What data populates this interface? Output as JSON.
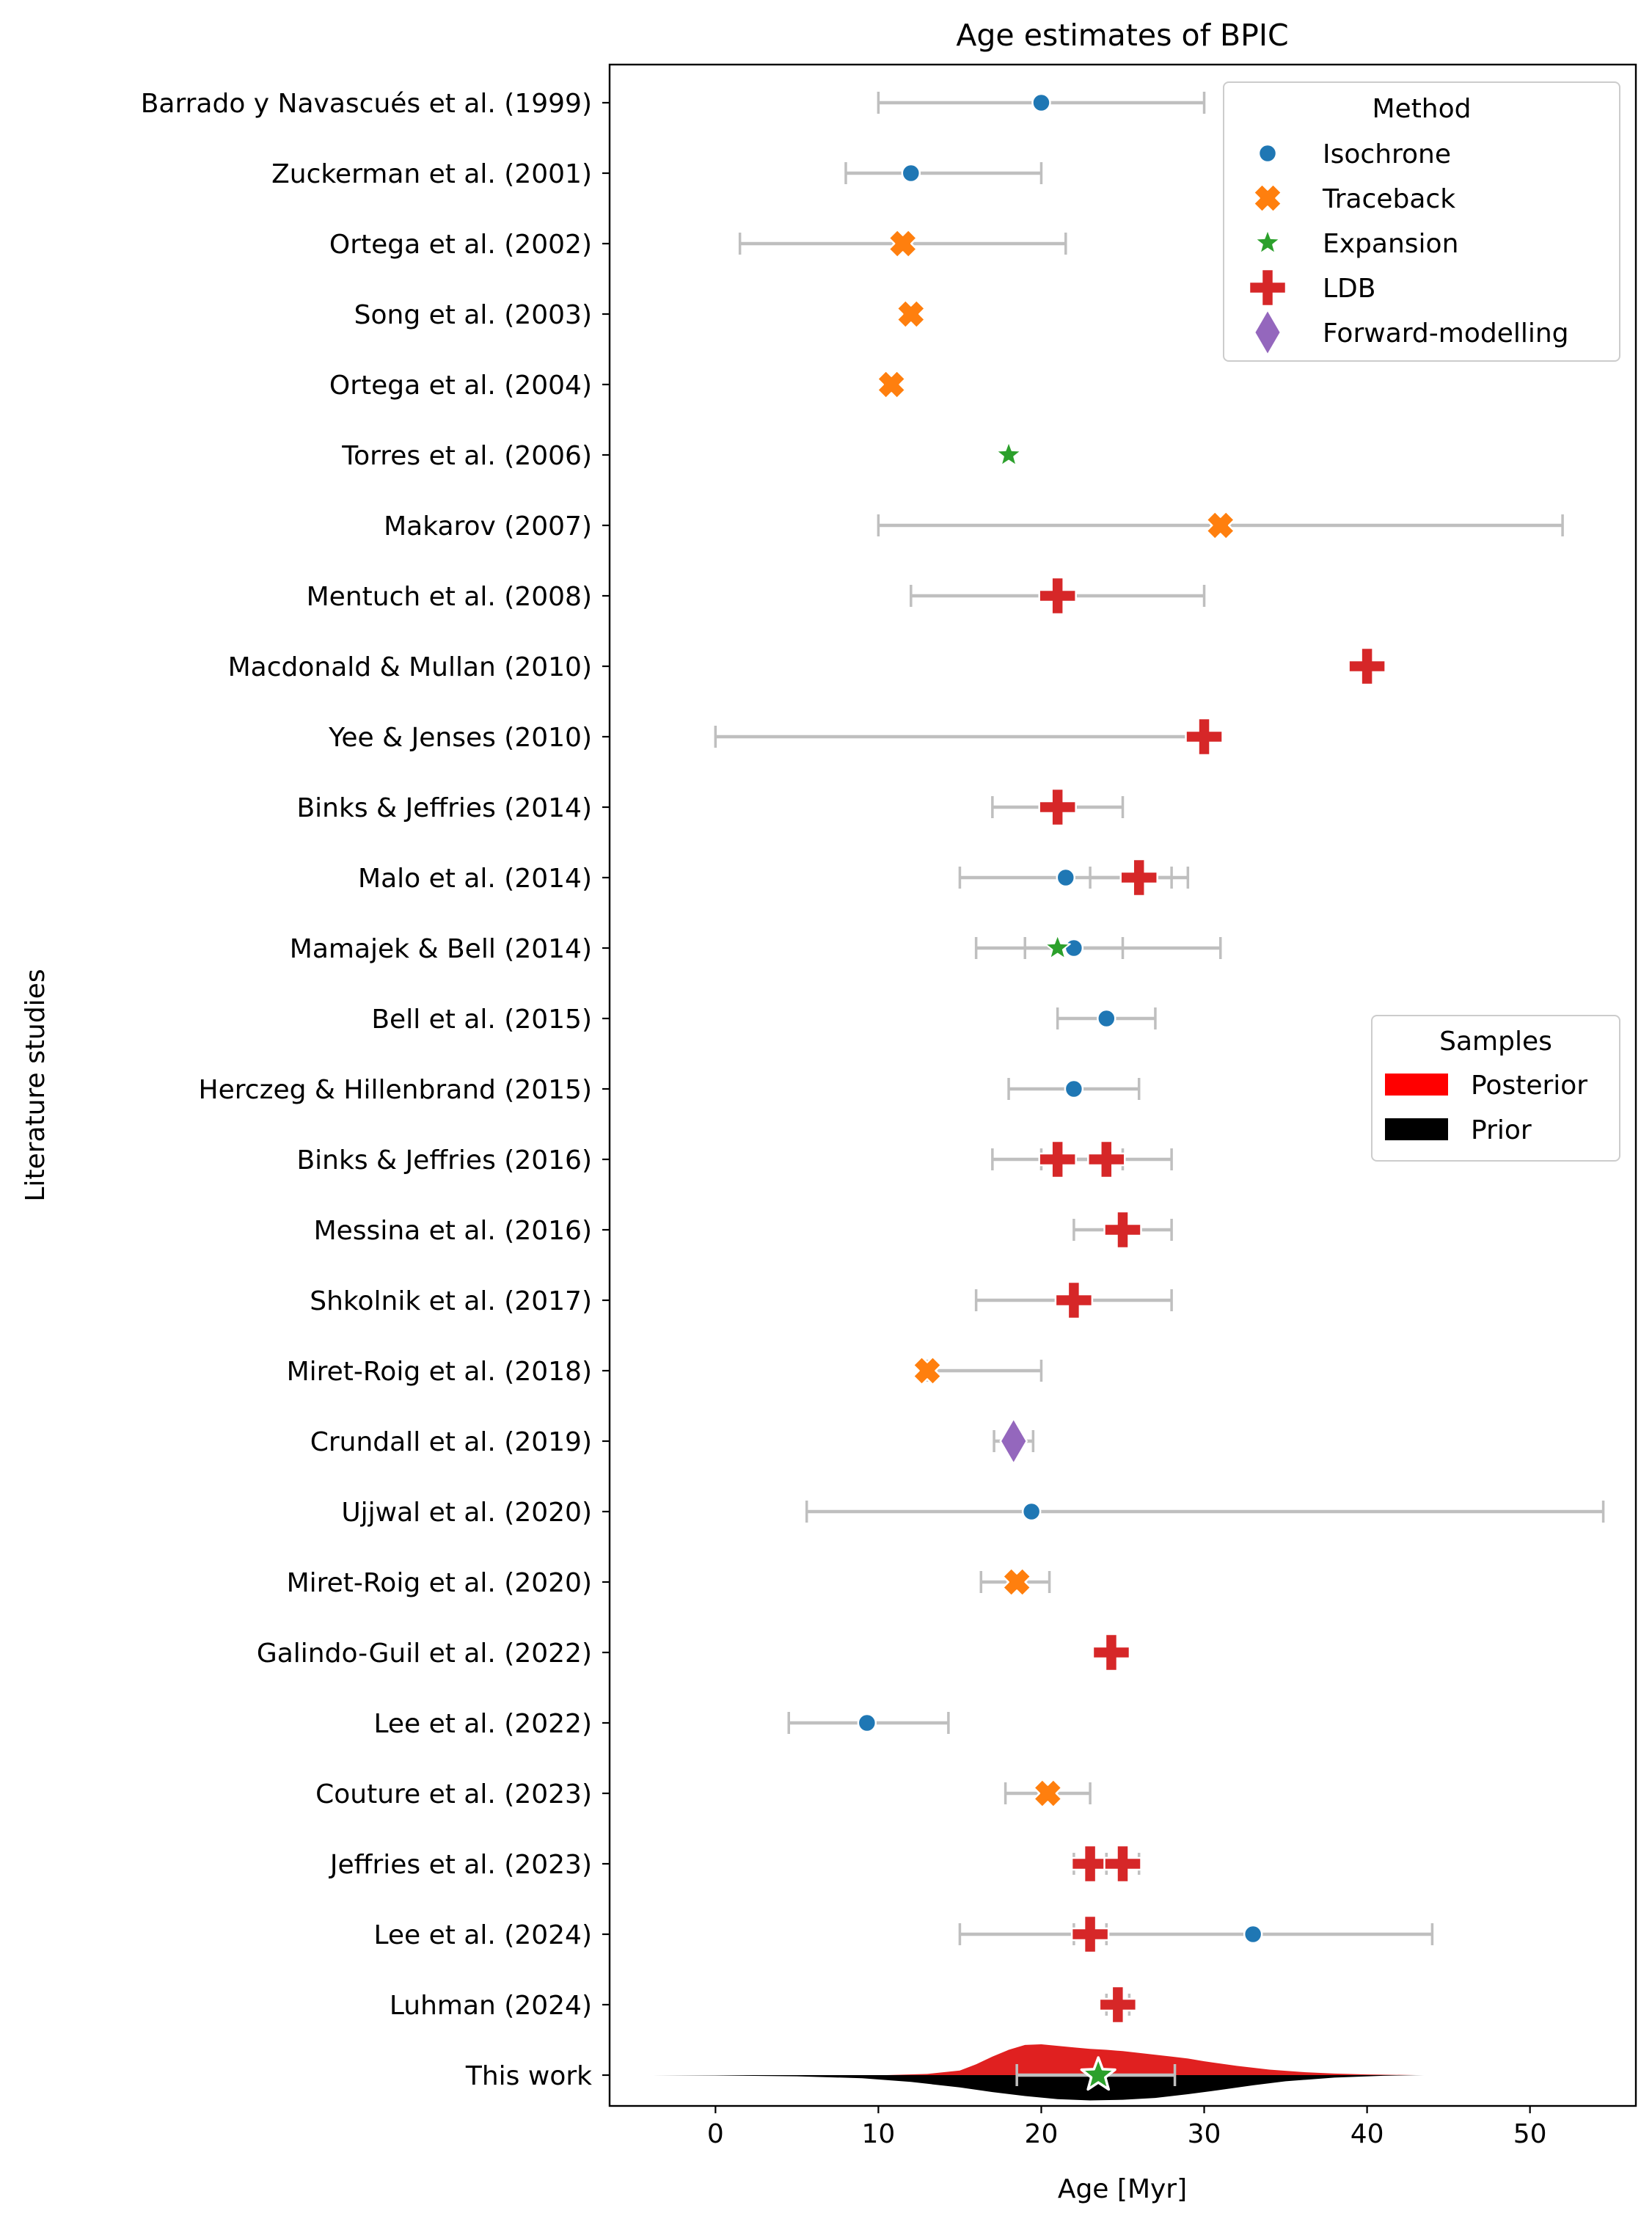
{
  "chart_data": {
    "type": "scatter",
    "title": "Age estimates of BPIC",
    "xlabel": "Age [Myr]",
    "ylabel": "Literature studies",
    "xlim": [
      -6.5,
      56.5
    ],
    "x_ticks": [
      0,
      10,
      20,
      30,
      40,
      50
    ],
    "grid": false,
    "method_legend": {
      "title": "Method",
      "placement": "top-right",
      "entries": [
        {
          "name": "Isochrone",
          "marker": "circle",
          "color": "#1f77b4"
        },
        {
          "name": "Traceback",
          "marker": "x",
          "color": "#ff7f0e"
        },
        {
          "name": "Expansion",
          "marker": "star",
          "color": "#2ca02c"
        },
        {
          "name": "LDB",
          "marker": "plus",
          "color": "#d62728"
        },
        {
          "name": "Forward-modelling",
          "marker": "diamond",
          "color": "#9467bd"
        }
      ]
    },
    "samples_legend": {
      "title": "Samples",
      "placement": "center-right",
      "entries": [
        {
          "name": "Posterior",
          "color": "#ff0000"
        },
        {
          "name": "Prior",
          "color": "#000000"
        }
      ]
    },
    "studies": [
      {
        "label": "Barrado y Navascués et al. (1999)",
        "estimates": [
          {
            "method": "Isochrone",
            "age": 20,
            "low": 10,
            "high": 30
          }
        ]
      },
      {
        "label": "Zuckerman et al. (2001)",
        "estimates": [
          {
            "method": "Isochrone",
            "age": 12,
            "low": 8,
            "high": 20
          }
        ]
      },
      {
        "label": "Ortega et al. (2002)",
        "estimates": [
          {
            "method": "Traceback",
            "age": 11.5,
            "low": 1.5,
            "high": 21.5
          }
        ]
      },
      {
        "label": "Song et al. (2003)",
        "estimates": [
          {
            "method": "Traceback",
            "age": 12
          }
        ]
      },
      {
        "label": "Ortega et al. (2004)",
        "estimates": [
          {
            "method": "Traceback",
            "age": 10.8
          }
        ]
      },
      {
        "label": "Torres et al. (2006)",
        "estimates": [
          {
            "method": "Expansion",
            "age": 18
          }
        ]
      },
      {
        "label": "Makarov (2007)",
        "estimates": [
          {
            "method": "Traceback",
            "age": 31,
            "low": 10,
            "high": 52
          }
        ]
      },
      {
        "label": "Mentuch et al. (2008)",
        "estimates": [
          {
            "method": "LDB",
            "age": 21,
            "low": 12,
            "high": 30
          }
        ]
      },
      {
        "label": "Macdonald & Mullan (2010)",
        "estimates": [
          {
            "method": "LDB",
            "age": 40
          }
        ]
      },
      {
        "label": "Yee & Jenses (2010)",
        "estimates": [
          {
            "method": "LDB",
            "age": 30,
            "low": 0,
            "high": 30
          }
        ]
      },
      {
        "label": "Binks & Jeffries (2014)",
        "estimates": [
          {
            "method": "LDB",
            "age": 21,
            "low": 17,
            "high": 25
          }
        ]
      },
      {
        "label": "Malo et al. (2014)",
        "estimates": [
          {
            "method": "Isochrone",
            "age": 21.5,
            "low": 15,
            "high": 28
          },
          {
            "method": "LDB",
            "age": 26,
            "low": 23,
            "high": 29
          }
        ]
      },
      {
        "label": "Mamajek & Bell (2014)",
        "estimates": [
          {
            "method": "Isochrone",
            "age": 22,
            "low": 16,
            "high": 31
          },
          {
            "method": "Expansion",
            "age": 21,
            "low": 19,
            "high": 25
          }
        ]
      },
      {
        "label": "Bell et al. (2015)",
        "estimates": [
          {
            "method": "Isochrone",
            "age": 24,
            "low": 21,
            "high": 27
          }
        ]
      },
      {
        "label": "Herczeg & Hillenbrand (2015)",
        "estimates": [
          {
            "method": "Isochrone",
            "age": 22,
            "low": 18,
            "high": 26
          }
        ]
      },
      {
        "label": "Binks & Jeffries (2016)",
        "estimates": [
          {
            "method": "LDB",
            "age": 21,
            "low": 17,
            "high": 25
          },
          {
            "method": "LDB",
            "age": 24,
            "low": 20,
            "high": 28
          }
        ]
      },
      {
        "label": "Messina et al. (2016)",
        "estimates": [
          {
            "method": "LDB",
            "age": 25,
            "low": 22,
            "high": 28
          }
        ]
      },
      {
        "label": "Shkolnik et al. (2017)",
        "estimates": [
          {
            "method": "LDB",
            "age": 22,
            "low": 16,
            "high": 28
          }
        ]
      },
      {
        "label": "Miret-Roig et al. (2018)",
        "estimates": [
          {
            "method": "Traceback",
            "age": 13,
            "low": 13,
            "high": 20
          }
        ]
      },
      {
        "label": "Crundall et al. (2019)",
        "estimates": [
          {
            "method": "Forward-modelling",
            "age": 18.3,
            "low": 17.1,
            "high": 19.5
          }
        ]
      },
      {
        "label": "Ujjwal et al. (2020)",
        "estimates": [
          {
            "method": "Isochrone",
            "age": 19.4,
            "low": 5.6,
            "high": 54.5
          }
        ]
      },
      {
        "label": "Miret-Roig et al. (2020)",
        "estimates": [
          {
            "method": "Traceback",
            "age": 18.5,
            "low": 16.3,
            "high": 20.5
          }
        ]
      },
      {
        "label": "Galindo-Guil et al. (2022)",
        "estimates": [
          {
            "method": "LDB",
            "age": 24.3
          }
        ]
      },
      {
        "label": "Lee et al. (2022)",
        "estimates": [
          {
            "method": "Isochrone",
            "age": 9.3,
            "low": 4.5,
            "high": 14.3
          }
        ]
      },
      {
        "label": "Couture et al. (2023)",
        "estimates": [
          {
            "method": "Traceback",
            "age": 20.4,
            "low": 17.8,
            "high": 23
          }
        ]
      },
      {
        "label": "Jeffries et al. (2023)",
        "estimates": [
          {
            "method": "LDB",
            "age": 23,
            "low": 22,
            "high": 24
          },
          {
            "method": "LDB",
            "age": 25,
            "low": 24,
            "high": 26
          }
        ]
      },
      {
        "label": "Lee et al. (2024)",
        "estimates": [
          {
            "method": "Isochrone",
            "age": 33,
            "low": 15,
            "high": 44
          },
          {
            "method": "LDB",
            "age": 23,
            "low": 22,
            "high": 24
          }
        ]
      },
      {
        "label": "Luhman (2024)",
        "estimates": [
          {
            "method": "LDB",
            "age": 24.7,
            "low": 24,
            "high": 25.4
          }
        ]
      },
      {
        "label": "This work",
        "estimates": [
          {
            "method": "Expansion",
            "age": 23.5,
            "low": 18.5,
            "high": 28.2
          }
        ]
      }
    ],
    "violin": {
      "posterior": {
        "x": [
          10.5,
          13,
          15,
          16,
          17,
          18,
          19,
          20,
          21,
          22,
          23,
          24,
          25,
          26,
          27,
          28,
          29,
          30,
          32,
          34,
          36,
          38,
          40,
          43
        ],
        "density": [
          0,
          0.04,
          0.15,
          0.35,
          0.6,
          0.82,
          0.98,
          1.0,
          0.95,
          0.9,
          0.85,
          0.82,
          0.78,
          0.72,
          0.66,
          0.6,
          0.54,
          0.45,
          0.3,
          0.18,
          0.1,
          0.05,
          0.02,
          0
        ]
      },
      "prior": {
        "x": [
          -4,
          0,
          5,
          9,
          12,
          15,
          17,
          19,
          21,
          23,
          25,
          27,
          29,
          31,
          33,
          35,
          38,
          41,
          43.5
        ],
        "density": [
          0,
          0.01,
          0.04,
          0.1,
          0.22,
          0.4,
          0.55,
          0.68,
          0.78,
          0.82,
          0.8,
          0.74,
          0.62,
          0.48,
          0.33,
          0.2,
          0.08,
          0.02,
          0
        ]
      }
    }
  }
}
